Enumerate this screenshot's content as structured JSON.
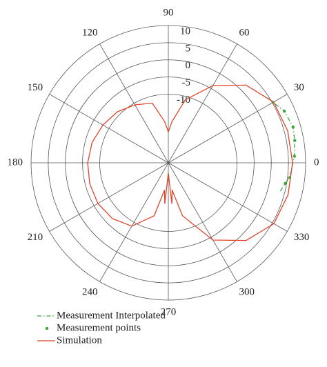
{
  "chart_data": {
    "type": "polar",
    "rlim": [
      -30,
      10
    ],
    "rticks": [
      -10,
      -5,
      0,
      5,
      10
    ],
    "thetaticks": [
      0,
      30,
      60,
      90,
      120,
      150,
      180,
      210,
      240,
      270,
      300,
      330
    ],
    "series": [
      {
        "name": "Measurement Interpolated",
        "color": "#3aa83a",
        "mode": "dashdot",
        "theta": [
          33,
          30,
          24,
          16,
          10,
          3,
          -7,
          -10,
          -15
        ],
        "values": [
          4.6,
          5.2,
          7,
          7.8,
          7.4,
          6.8,
          5.6,
          4.6,
          3.5
        ]
      },
      {
        "name": "Measurement points",
        "color": "#3aa83a",
        "mode": "markers",
        "theta": [
          30,
          24,
          16,
          10,
          3,
          -7,
          -10
        ],
        "values": [
          5.2,
          7,
          7.8,
          7.4,
          6.8,
          5.6,
          4.6
        ]
      },
      {
        "name": "Simulation",
        "color": "#e0442a",
        "mode": "line",
        "theta": [
          0,
          15,
          30,
          45,
          60,
          75,
          85,
          90,
          95,
          105,
          120,
          135,
          150,
          165,
          180,
          195,
          210,
          225,
          240,
          255,
          262,
          265,
          270,
          275,
          278,
          285,
          300,
          315,
          330,
          345,
          360
        ],
        "values": [
          6.2,
          6,
          5.4,
          2,
          -4,
          -11,
          -18,
          -21,
          -18,
          -12,
          -10.5,
          -9,
          -8,
          -7,
          -6.5,
          -6.3,
          -6.3,
          -7,
          -8.7,
          -14,
          -22,
          -18,
          -27,
          -18,
          -22,
          -14,
          -4,
          2,
          5.5,
          6.1,
          6.2
        ]
      }
    ]
  }
}
